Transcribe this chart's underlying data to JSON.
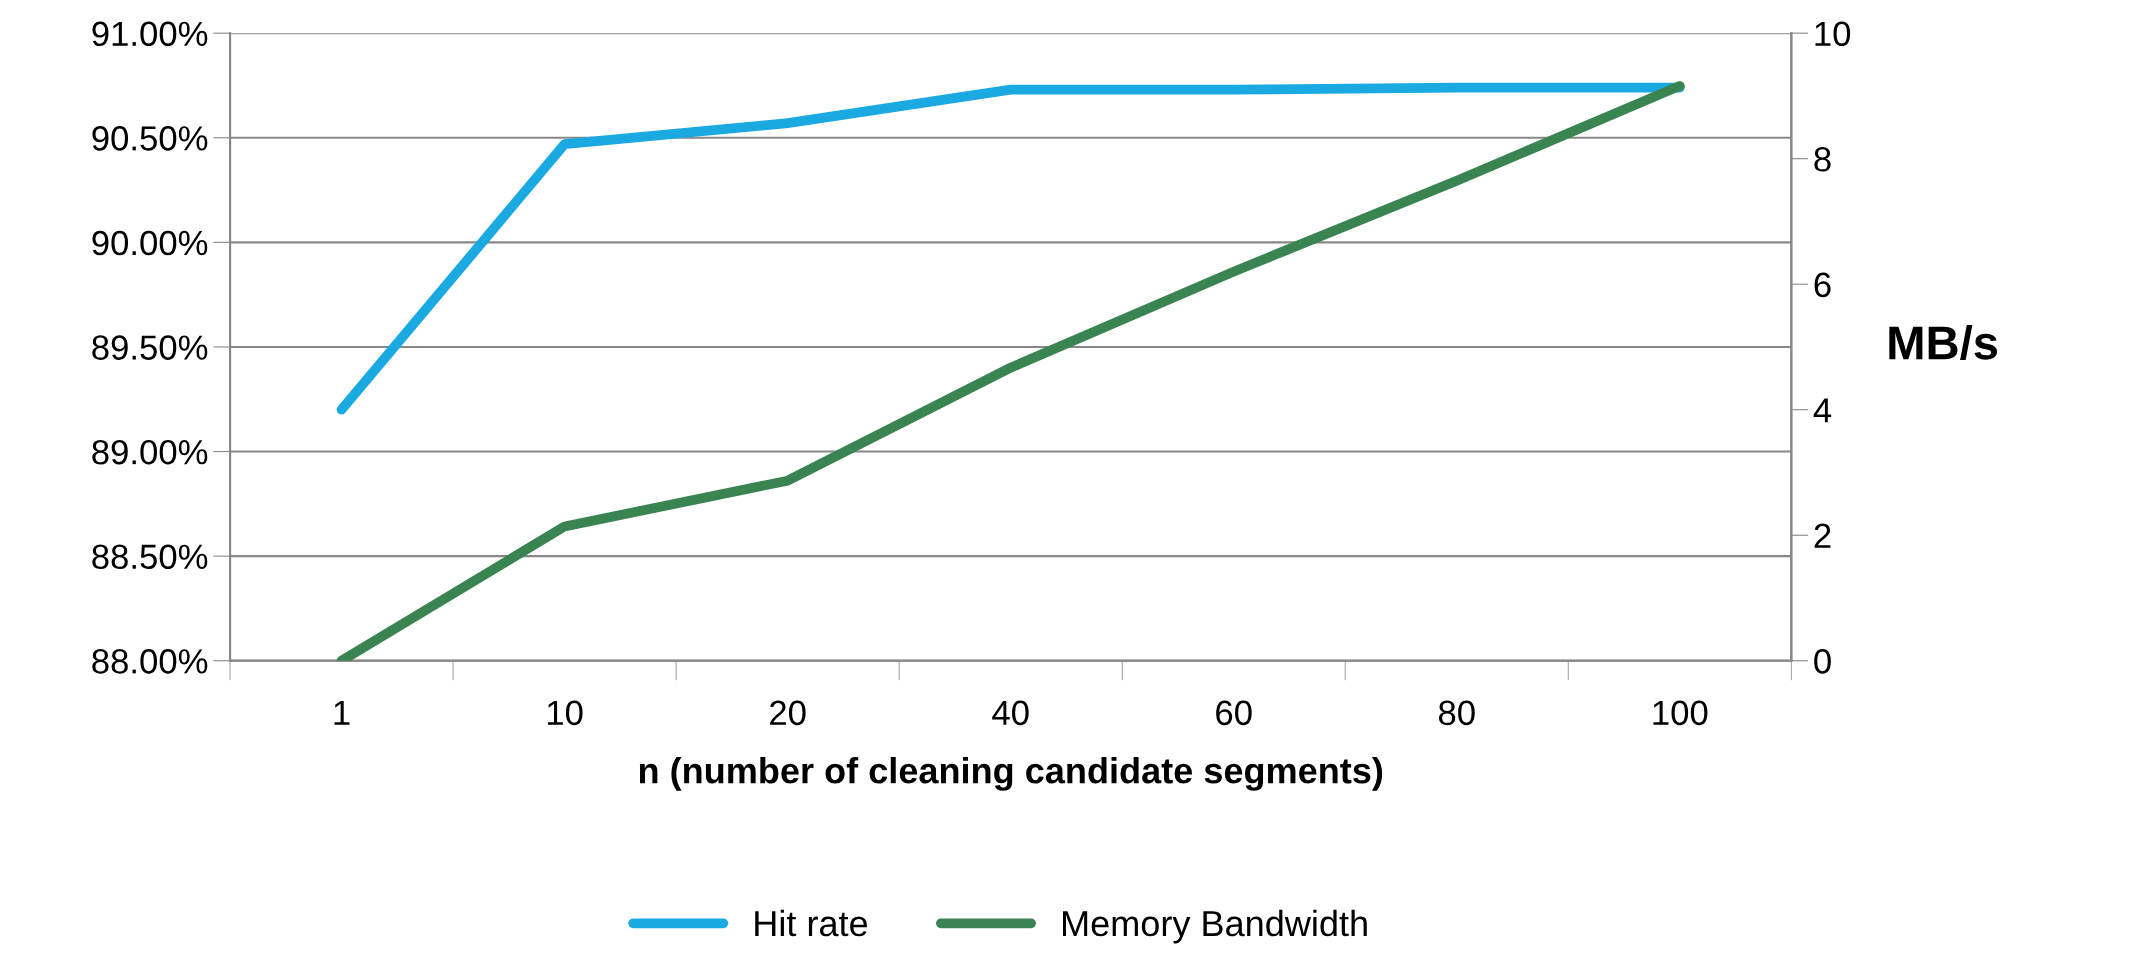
{
  "chart_data": {
    "type": "line",
    "xlabel": "n (number of cleaning candidate segments)",
    "y2label": "MB/s",
    "categories": [
      "1",
      "10",
      "20",
      "40",
      "60",
      "80",
      "100"
    ],
    "series": [
      {
        "name": "Hit rate",
        "color": "#1ba9e1",
        "values": [
          89.2,
          90.47,
          90.57,
          90.73,
          90.73,
          90.74,
          90.74
        ]
      },
      {
        "name": "Memory Bandwidth",
        "color": "#3a8452",
        "axis": "y2",
        "values": [
          0,
          2.14,
          2.87,
          4.67,
          6.2,
          7.65,
          9.16
        ]
      }
    ],
    "ylim": [
      88,
      91
    ],
    "yticks": [
      {
        "value": 88,
        "label": "88.00%"
      },
      {
        "value": 88.5,
        "label": "88.50%"
      },
      {
        "value": 89,
        "label": "89.00%"
      },
      {
        "value": 89.5,
        "label": "89.50%"
      },
      {
        "value": 90,
        "label": "90.00%"
      },
      {
        "value": 90.5,
        "label": "90.50%"
      },
      {
        "value": 91,
        "label": "91.00%"
      }
    ],
    "y2lim": [
      0,
      10
    ],
    "y2ticks": [
      0,
      2,
      4,
      6,
      8,
      10
    ],
    "grid": "y",
    "legend": "bottom",
    "marker": "none",
    "line_style": "solid"
  }
}
